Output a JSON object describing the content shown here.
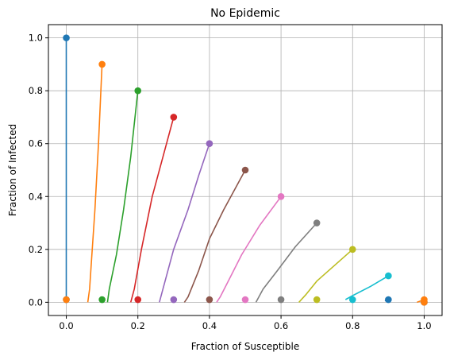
{
  "chart_data": {
    "type": "line",
    "title": "No Epidemic",
    "xlabel": "Fraction of Susceptible",
    "ylabel": "Fraction of Infected",
    "xlim": [
      -0.05,
      1.05
    ],
    "ylim": [
      -0.05,
      1.05
    ],
    "xticks": [
      0.0,
      0.2,
      0.4,
      0.6,
      0.8,
      1.0
    ],
    "yticks": [
      0.0,
      0.2,
      0.4,
      0.6,
      0.8,
      1.0
    ],
    "xtick_labels": [
      "0.0",
      "0.2",
      "0.4",
      "0.6",
      "0.8",
      "1.0"
    ],
    "ytick_labels": [
      "0.0",
      "0.2",
      "0.4",
      "0.6",
      "0.8",
      "1.0"
    ],
    "grid": true,
    "series": [
      {
        "color": "#1f77b4",
        "start": [
          0.0,
          1.0
        ],
        "end": [
          0.0,
          0.01
        ],
        "x": [
          0.0,
          0.0,
          0.0,
          0.0
        ],
        "y": [
          1.0,
          0.6,
          0.3,
          0.0
        ]
      },
      {
        "color": "#ff7f0e",
        "start": [
          0.1,
          0.9
        ],
        "end": [
          0.0,
          0.01
        ],
        "x": [
          0.1,
          0.09,
          0.08,
          0.07,
          0.065,
          0.06
        ],
        "y": [
          0.9,
          0.6,
          0.35,
          0.15,
          0.05,
          0.0
        ]
      },
      {
        "color": "#2ca02c",
        "start": [
          0.2,
          0.8
        ],
        "end": [
          0.1,
          0.01
        ],
        "x": [
          0.2,
          0.18,
          0.16,
          0.14,
          0.12,
          0.115
        ],
        "y": [
          0.8,
          0.55,
          0.35,
          0.18,
          0.05,
          0.0
        ]
      },
      {
        "color": "#d62728",
        "start": [
          0.3,
          0.7
        ],
        "end": [
          0.2,
          0.01
        ],
        "x": [
          0.3,
          0.27,
          0.24,
          0.21,
          0.19,
          0.18
        ],
        "y": [
          0.7,
          0.55,
          0.4,
          0.2,
          0.05,
          0.0
        ]
      },
      {
        "color": "#9467bd",
        "start": [
          0.4,
          0.6
        ],
        "end": [
          0.3,
          0.01
        ],
        "x": [
          0.4,
          0.37,
          0.34,
          0.3,
          0.27,
          0.26
        ],
        "y": [
          0.6,
          0.48,
          0.35,
          0.2,
          0.05,
          0.0
        ]
      },
      {
        "color": "#8c564b",
        "start": [
          0.5,
          0.5
        ],
        "end": [
          0.4,
          0.01
        ],
        "x": [
          0.5,
          0.44,
          0.4,
          0.37,
          0.34,
          0.33
        ],
        "y": [
          0.5,
          0.35,
          0.24,
          0.12,
          0.02,
          0.0
        ]
      },
      {
        "color": "#e377c2",
        "start": [
          0.6,
          0.4
        ],
        "end": [
          0.5,
          0.01
        ],
        "x": [
          0.6,
          0.54,
          0.49,
          0.46,
          0.43,
          0.42
        ],
        "y": [
          0.4,
          0.29,
          0.18,
          0.1,
          0.02,
          0.0
        ]
      },
      {
        "color": "#7f7f7f",
        "start": [
          0.7,
          0.3
        ],
        "end": [
          0.6,
          0.01
        ],
        "x": [
          0.7,
          0.64,
          0.59,
          0.55,
          0.53
        ],
        "y": [
          0.3,
          0.21,
          0.12,
          0.05,
          0.0
        ]
      },
      {
        "color": "#bcbd22",
        "start": [
          0.8,
          0.2
        ],
        "end": [
          0.7,
          0.01
        ],
        "x": [
          0.8,
          0.75,
          0.7,
          0.67,
          0.65
        ],
        "y": [
          0.2,
          0.14,
          0.08,
          0.03,
          0.0
        ]
      },
      {
        "color": "#17becf",
        "start": [
          0.9,
          0.1
        ],
        "end": [
          0.8,
          0.01
        ],
        "x": [
          0.9,
          0.85,
          0.8,
          0.78
        ],
        "y": [
          0.1,
          0.06,
          0.025,
          0.01
        ]
      },
      {
        "color": "#1f77b4",
        "start": [
          1.0,
          0.0
        ],
        "end": [
          0.9,
          0.01
        ],
        "x": [
          0.9,
          0.89
        ],
        "y": [
          0.008,
          0.006
        ]
      },
      {
        "color": "#ff7f0e",
        "start": [
          1.0,
          0.01
        ],
        "end": [
          1.0,
          0.0
        ],
        "x": [
          1.0,
          0.99,
          0.98
        ],
        "y": [
          0.01,
          0.005,
          0.0
        ]
      }
    ]
  }
}
